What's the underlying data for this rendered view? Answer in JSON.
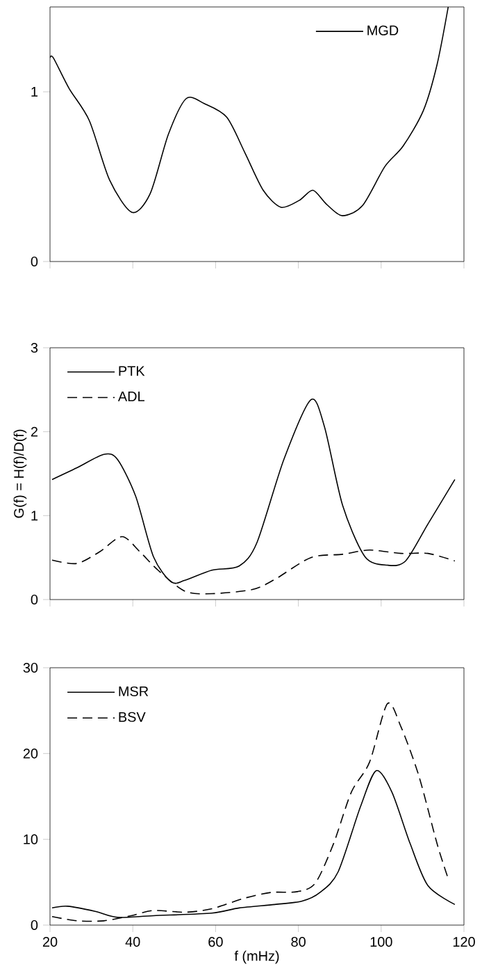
{
  "chart_data": [
    {
      "type": "line",
      "xlim": [
        20,
        120
      ],
      "xticks": [
        20,
        40,
        60,
        80,
        100,
        120
      ],
      "ylim": [
        0,
        1.5
      ],
      "yticks": [
        0,
        1
      ],
      "tick_labels": "y",
      "legend": "top right",
      "marker": "none",
      "series": [
        {
          "name": "MGD",
          "color": "#000000",
          "line_style": "solid",
          "x": [
            20,
            20.8,
            24.6,
            29.5,
            34.4,
            39.8,
            44.2,
            48.6,
            52.9,
            57.3,
            62.7,
            67.1,
            71.5,
            75.8,
            80.2,
            83.5,
            86.7,
            90.6,
            95.5,
            100.9,
            105.3,
            110.2,
            113.5,
            116.2
          ],
          "values": [
            1.2,
            1.2,
            1.02,
            0.83,
            0.48,
            0.29,
            0.4,
            0.75,
            0.96,
            0.93,
            0.85,
            0.64,
            0.42,
            0.32,
            0.36,
            0.42,
            0.34,
            0.27,
            0.33,
            0.56,
            0.68,
            0.89,
            1.16,
            1.5
          ]
        }
      ]
    },
    {
      "type": "line",
      "ylabel": "G(f) = H(f)/D(f)",
      "xlim": [
        20,
        120
      ],
      "xticks": [
        20,
        40,
        60,
        80,
        100,
        120
      ],
      "ylim": [
        0,
        3
      ],
      "yticks": [
        0,
        1,
        2,
        3
      ],
      "tick_labels": "y",
      "legend": "top left",
      "marker": "none",
      "series": [
        {
          "name": "PTK",
          "color": "#000000",
          "line_style": "solid",
          "x": [
            20.5,
            26.5,
            33.0,
            36.3,
            40.7,
            45.0,
            49.3,
            52.6,
            59.1,
            65.7,
            70.0,
            76.5,
            83.0,
            86.3,
            90.7,
            96.1,
            101.5,
            105.9,
            111.3,
            117.8
          ],
          "values": [
            1.43,
            1.57,
            1.73,
            1.67,
            1.23,
            0.51,
            0.21,
            0.23,
            0.35,
            0.4,
            0.68,
            1.67,
            2.38,
            2.06,
            1.12,
            0.51,
            0.41,
            0.46,
            0.9,
            1.43
          ]
        },
        {
          "name": "ADL",
          "color": "#000000",
          "line_style": "dashed",
          "x": [
            20.5,
            26.5,
            32,
            37.4,
            41.7,
            46.1,
            52.6,
            59.1,
            68.9,
            74.3,
            83,
            90.7,
            97.2,
            104.8,
            111.3,
            117.8
          ],
          "values": [
            0.47,
            0.43,
            0.57,
            0.75,
            0.57,
            0.35,
            0.1,
            0.07,
            0.12,
            0.24,
            0.5,
            0.54,
            0.59,
            0.55,
            0.55,
            0.46
          ]
        }
      ]
    },
    {
      "type": "line",
      "xlabel": "f (mHz)",
      "xlim": [
        20,
        120
      ],
      "xticks": [
        20,
        40,
        60,
        80,
        100,
        120
      ],
      "ylim": [
        0,
        30
      ],
      "yticks": [
        0,
        10,
        20,
        30
      ],
      "legend": "top left",
      "marker": "none",
      "series": [
        {
          "name": "MSR",
          "color": "#000000",
          "line_style": "solid",
          "x": [
            20.5,
            24.3,
            30.9,
            36.3,
            45,
            59.1,
            65.7,
            74.3,
            80.9,
            85.2,
            89.6,
            95,
            98.8,
            102.6,
            107,
            111.3,
            117.8
          ],
          "values": [
            2.0,
            2.2,
            1.6,
            0.9,
            1.1,
            1.4,
            2.0,
            2.4,
            2.8,
            3.8,
            6.2,
            13.8,
            18.0,
            15.5,
            9.5,
            4.6,
            2.4
          ]
        },
        {
          "name": "BSV",
          "color": "#000000",
          "line_style": "dashed",
          "x": [
            20.5,
            26.5,
            33,
            39.6,
            45,
            52.6,
            59.1,
            66.7,
            73.3,
            79.8,
            84.1,
            88.5,
            92.8,
            97.2,
            101.5,
            104.8,
            109.1,
            113.5,
            116.2
          ],
          "values": [
            1.0,
            0.5,
            0.5,
            1.1,
            1.7,
            1.5,
            1.9,
            3.1,
            3.8,
            3.9,
            4.9,
            9.5,
            15.5,
            19.0,
            25.8,
            23.1,
            17.4,
            9.5,
            5.4
          ]
        }
      ]
    }
  ]
}
